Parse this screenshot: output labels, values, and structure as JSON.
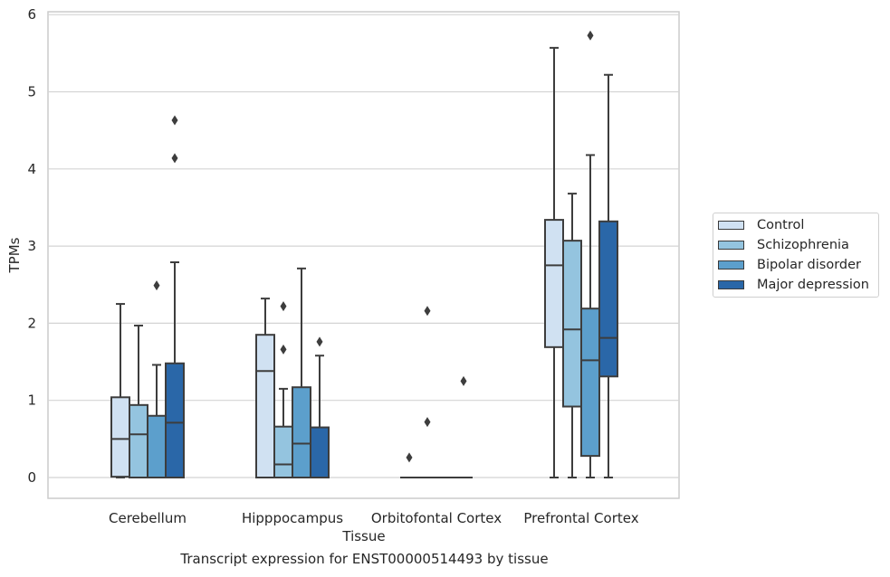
{
  "chart_data": {
    "type": "box",
    "caption": "Transcript expression for ENST00000514493 by tissue",
    "xlabel": "Tissue",
    "ylabel": "TPMs",
    "ylim": [
      -0.28,
      6.05
    ],
    "yticks": [
      0,
      1,
      2,
      3,
      4,
      5,
      6
    ],
    "grid": true,
    "legend_position": "right",
    "categories": [
      "Cerebellum",
      "Hipppocampus",
      "Orbitofontal Cortex",
      "Prefrontal Cortex"
    ],
    "series": [
      {
        "name": "Control",
        "color": "#d0e1f2",
        "boxes": [
          {
            "whisker_low": 0.0,
            "q1": 0.01,
            "median": 0.5,
            "q3": 1.04,
            "whisker_high": 2.25,
            "outliers": []
          },
          {
            "whisker_low": 0.0,
            "q1": 0.0,
            "median": 1.38,
            "q3": 1.85,
            "whisker_high": 2.32,
            "outliers": []
          },
          {
            "whisker_low": 0.0,
            "q1": 0.0,
            "median": 0.0,
            "q3": 0.0,
            "whisker_high": 0.0,
            "outliers": [
              0.26
            ]
          },
          {
            "whisker_low": 0.0,
            "q1": 1.69,
            "median": 2.75,
            "q3": 3.34,
            "whisker_high": 5.57,
            "outliers": []
          }
        ]
      },
      {
        "name": "Schizophrenia",
        "color": "#94c4df",
        "boxes": [
          {
            "whisker_low": 0.0,
            "q1": 0.0,
            "median": 0.56,
            "q3": 0.94,
            "whisker_high": 1.97,
            "outliers": []
          },
          {
            "whisker_low": 0.0,
            "q1": 0.0,
            "median": 0.17,
            "q3": 0.66,
            "whisker_high": 1.15,
            "outliers": [
              1.66,
              2.22
            ]
          },
          {
            "whisker_low": 0.0,
            "q1": 0.0,
            "median": 0.0,
            "q3": 0.0,
            "whisker_high": 0.0,
            "outliers": [
              0.72,
              2.16
            ]
          },
          {
            "whisker_low": 0.0,
            "q1": 0.92,
            "median": 1.92,
            "q3": 3.07,
            "whisker_high": 3.68,
            "outliers": []
          }
        ]
      },
      {
        "name": "Bipolar disorder",
        "color": "#5c9fcc",
        "boxes": [
          {
            "whisker_low": 0.0,
            "q1": 0.0,
            "median": 0.0,
            "q3": 0.8,
            "whisker_high": 1.46,
            "outliers": [
              2.49
            ]
          },
          {
            "whisker_low": 0.0,
            "q1": 0.0,
            "median": 0.44,
            "q3": 1.17,
            "whisker_high": 2.71,
            "outliers": []
          },
          {
            "whisker_low": 0.0,
            "q1": 0.0,
            "median": 0.0,
            "q3": 0.0,
            "whisker_high": 0.0,
            "outliers": []
          },
          {
            "whisker_low": 0.0,
            "q1": 0.28,
            "median": 1.52,
            "q3": 2.19,
            "whisker_high": 4.18,
            "outliers": [
              5.73
            ]
          }
        ]
      },
      {
        "name": "Major depression",
        "color": "#2a67a8",
        "boxes": [
          {
            "whisker_low": 0.0,
            "q1": 0.0,
            "median": 0.71,
            "q3": 1.48,
            "whisker_high": 2.79,
            "outliers": [
              4.14,
              4.63
            ]
          },
          {
            "whisker_low": 0.0,
            "q1": 0.0,
            "median": 0.0,
            "q3": 0.65,
            "whisker_high": 1.58,
            "outliers": [
              1.76
            ]
          },
          {
            "whisker_low": 0.0,
            "q1": 0.0,
            "median": 0.0,
            "q3": 0.0,
            "whisker_high": 0.0,
            "outliers": [
              1.25
            ]
          },
          {
            "whisker_low": 0.0,
            "q1": 1.31,
            "median": 1.81,
            "q3": 3.32,
            "whisker_high": 5.22,
            "outliers": []
          }
        ]
      }
    ]
  }
}
